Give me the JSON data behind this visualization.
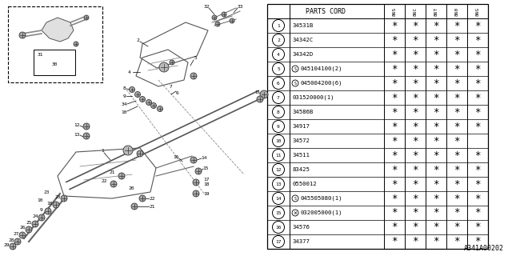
{
  "bg_color": "#ffffff",
  "footer": "A341A00202",
  "year_headers": [
    "86S",
    "86C",
    "86T",
    "860",
    "86G"
  ],
  "parts": [
    {
      "num": "1",
      "code": "34531B",
      "stars": [
        1,
        1,
        1,
        1,
        1
      ],
      "prefix": ""
    },
    {
      "num": "2",
      "code": "34342C",
      "stars": [
        1,
        1,
        1,
        1,
        1
      ],
      "prefix": ""
    },
    {
      "num": "4",
      "code": "34342D",
      "stars": [
        1,
        1,
        1,
        1,
        1
      ],
      "prefix": ""
    },
    {
      "num": "5",
      "code": "045104100(2)",
      "stars": [
        1,
        1,
        1,
        1,
        1
      ],
      "prefix": "S"
    },
    {
      "num": "6",
      "code": "045004200(6)",
      "stars": [
        1,
        1,
        1,
        1,
        1
      ],
      "prefix": "S"
    },
    {
      "num": "7",
      "code": "031520000(1)",
      "stars": [
        1,
        1,
        1,
        1,
        1
      ],
      "prefix": ""
    },
    {
      "num": "8",
      "code": "34586B",
      "stars": [
        1,
        1,
        1,
        1,
        1
      ],
      "prefix": ""
    },
    {
      "num": "9",
      "code": "34917",
      "stars": [
        1,
        1,
        1,
        1,
        1
      ],
      "prefix": ""
    },
    {
      "num": "10",
      "code": "34572",
      "stars": [
        1,
        1,
        1,
        1,
        0
      ],
      "prefix": ""
    },
    {
      "num": "11",
      "code": "34511",
      "stars": [
        1,
        1,
        1,
        1,
        1
      ],
      "prefix": ""
    },
    {
      "num": "12",
      "code": "83425",
      "stars": [
        1,
        1,
        1,
        1,
        1
      ],
      "prefix": ""
    },
    {
      "num": "13",
      "code": "0550012",
      "stars": [
        1,
        1,
        1,
        1,
        1
      ],
      "prefix": ""
    },
    {
      "num": "14",
      "code": "045505080(1)",
      "stars": [
        1,
        1,
        1,
        1,
        1
      ],
      "prefix": "S"
    },
    {
      "num": "15",
      "code": "032005000(1)",
      "stars": [
        1,
        1,
        1,
        1,
        1
      ],
      "prefix": "W"
    },
    {
      "num": "16",
      "code": "34576",
      "stars": [
        1,
        1,
        1,
        1,
        1
      ],
      "prefix": ""
    },
    {
      "num": "17",
      "code": "34377",
      "stars": [
        1,
        1,
        1,
        1,
        1
      ],
      "prefix": ""
    }
  ]
}
